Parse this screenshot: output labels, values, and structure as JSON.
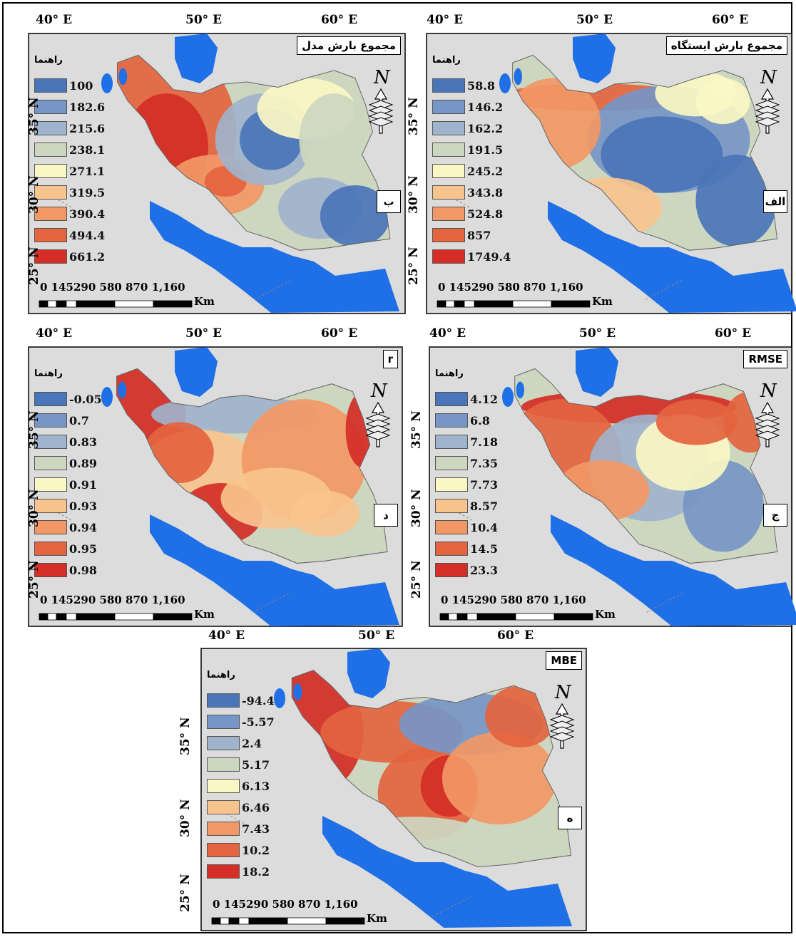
{
  "figure": {
    "legend_title": "راهنما",
    "lon_labels": [
      "40° E",
      "50° E",
      "60° E"
    ],
    "lat_labels": [
      "35° N",
      "30° N",
      "25° N"
    ],
    "scale_text": "0 145290    580    870  1,160",
    "scale_unit": "Km",
    "north_letter": "N"
  },
  "panels": [
    {
      "id": "b",
      "title": "مجموع بارش مدل",
      "letter": "ب",
      "legend": [
        "100",
        "182.6",
        "215.6",
        "238.1",
        "271.1",
        "319.5",
        "390.4",
        "494.4",
        "661.2"
      ]
    },
    {
      "id": "alef",
      "title": "مجموع بارش ایستگاه",
      "letter": "الف",
      "legend": [
        "58.8",
        "146.2",
        "162.2",
        "191.5",
        "245.2",
        "343.8",
        "524.8",
        "857",
        "1749.4"
      ]
    },
    {
      "id": "d",
      "title": "r",
      "letter": "د",
      "legend": [
        "-0.05",
        "0.7",
        "0.83",
        "0.89",
        "0.91",
        "0.93",
        "0.94",
        "0.95",
        "0.98"
      ]
    },
    {
      "id": "j",
      "title": "RMSE",
      "letter": "ج",
      "legend": [
        "4.12",
        "6.8",
        "7.18",
        "7.35",
        "7.73",
        "8.57",
        "10.4",
        "14.5",
        "23.3"
      ]
    },
    {
      "id": "h",
      "title": "MBE",
      "letter": "ه",
      "legend": [
        "-94.4",
        "-5.57",
        "2.4",
        "5.17",
        "6.13",
        "6.46",
        "7.43",
        "10.2",
        "18.2"
      ]
    }
  ],
  "colors": {
    "classes": [
      "#4a75b8",
      "#7696c6",
      "#9fb3cc",
      "#cdd7c0",
      "#fbf7c4",
      "#f8c48e",
      "#f29866",
      "#e4643f",
      "#d42e26"
    ],
    "water": "#1f6fe6",
    "land_bg": "#dcdcdc"
  }
}
